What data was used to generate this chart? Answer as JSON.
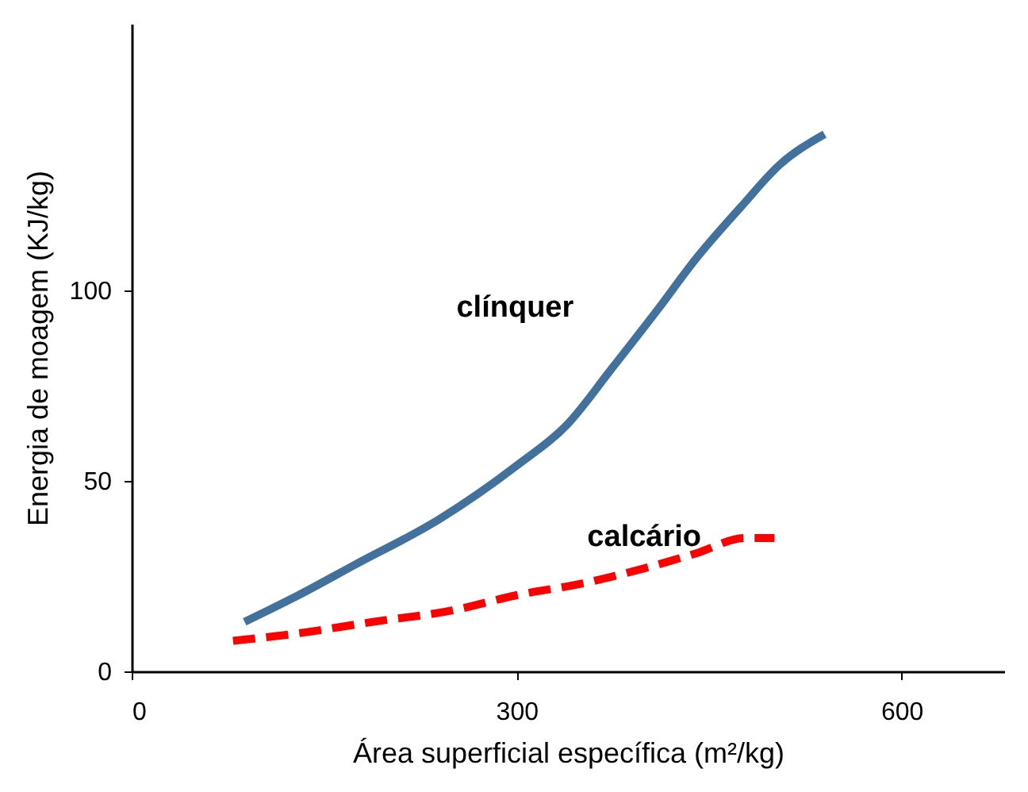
{
  "chart_data": {
    "type": "line",
    "xlabel": "Área superficial específica (m²/kg)",
    "ylabel": "Energia de moagem (KJ/kg)",
    "xlim": [
      0,
      680
    ],
    "ylim": [
      0,
      170
    ],
    "xticks": [
      0,
      300,
      600
    ],
    "yticks": [
      0,
      50,
      100
    ],
    "grid": false,
    "legend": false,
    "series": [
      {
        "color": "#41719c",
        "line_style": "solid",
        "x": [
          88,
          130,
          174,
          240,
          300,
          340,
          373,
          410,
          439,
          475,
          505,
          540
        ],
        "values": [
          13,
          20,
          28,
          40,
          54,
          65,
          79,
          95,
          108,
          122,
          133,
          141
        ]
      },
      {
        "color": "#ff0000",
        "line_style": "dashed",
        "x": [
          79,
          130,
          188,
          250,
          300,
          350,
          399,
          440,
          478,
          501
        ],
        "values": [
          8,
          10,
          13,
          16,
          20,
          23,
          27,
          31,
          35,
          35
        ]
      }
    ],
    "annotations": [
      "clínquer",
      "calcário"
    ]
  }
}
